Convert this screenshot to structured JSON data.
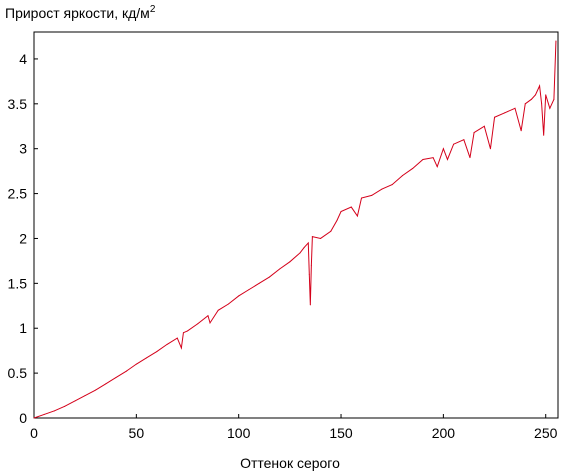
{
  "chart_data": {
    "type": "line",
    "title": "",
    "ylabel": "Прирост яркости, кд/м",
    "ylabel_sup": "2",
    "xlabel": "Оттенок серого",
    "xlim": [
      0,
      256
    ],
    "ylim": [
      0,
      4.3
    ],
    "xticks": [
      0,
      50,
      100,
      150,
      200,
      250
    ],
    "yticks": [
      0,
      0.5,
      1,
      1.5,
      2,
      2.5,
      3,
      3.5,
      4
    ],
    "ytick_labels": [
      "0",
      "0.5",
      "1",
      "1.5",
      "2",
      "2.5",
      "3",
      "3.5",
      "4"
    ],
    "grid": false,
    "series": [
      {
        "color": "#d4001a",
        "x": [
          0,
          5,
          10,
          15,
          20,
          25,
          30,
          35,
          40,
          45,
          50,
          55,
          60,
          65,
          70,
          72,
          73,
          75,
          80,
          85,
          86,
          90,
          95,
          100,
          105,
          110,
          115,
          120,
          125,
          130,
          132,
          134,
          134.5,
          135,
          135.5,
          136,
          140,
          145,
          148,
          150,
          155,
          158,
          160,
          165,
          170,
          175,
          180,
          185,
          190,
          195,
          197,
          200,
          202,
          205,
          210,
          213,
          215,
          220,
          223,
          225,
          230,
          235,
          238,
          240,
          243,
          245,
          247,
          248,
          249,
          250,
          252,
          254,
          255
        ],
        "y": [
          0,
          0.04,
          0.08,
          0.13,
          0.19,
          0.25,
          0.31,
          0.38,
          0.45,
          0.52,
          0.6,
          0.67,
          0.74,
          0.82,
          0.89,
          0.78,
          0.95,
          0.97,
          1.05,
          1.14,
          1.06,
          1.2,
          1.27,
          1.36,
          1.43,
          1.5,
          1.57,
          1.66,
          1.74,
          1.84,
          1.9,
          1.95,
          1.6,
          1.26,
          1.7,
          2.02,
          2.0,
          2.08,
          2.2,
          2.3,
          2.35,
          2.25,
          2.45,
          2.48,
          2.55,
          2.6,
          2.7,
          2.78,
          2.88,
          2.9,
          2.8,
          3.0,
          2.88,
          3.05,
          3.1,
          2.9,
          3.18,
          3.25,
          3.0,
          3.35,
          3.4,
          3.45,
          3.2,
          3.5,
          3.55,
          3.6,
          3.7,
          3.5,
          3.15,
          3.6,
          3.45,
          3.55,
          4.2
        ]
      }
    ]
  }
}
